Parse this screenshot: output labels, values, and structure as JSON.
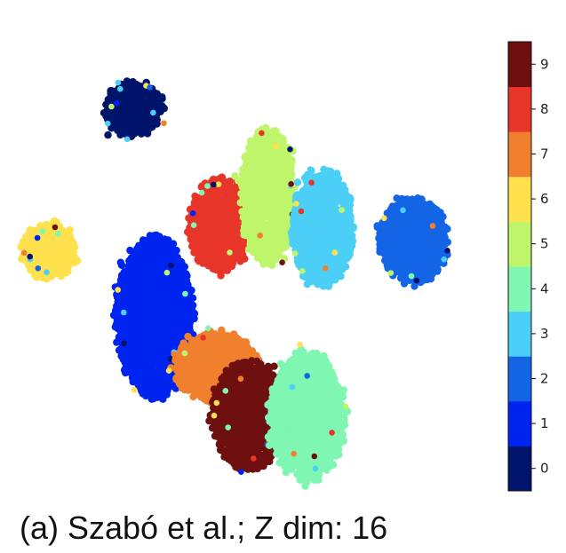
{
  "caption": "(a) Szabó et al.; Z dim: 16",
  "chart_data": {
    "type": "scatter",
    "description_type": "t-SNE embedding colored by class label",
    "colorbar": {
      "ticks": [
        0,
        1,
        2,
        3,
        4,
        5,
        6,
        7,
        8,
        9
      ],
      "colors": [
        "#00146b",
        "#0024f0",
        "#1464e6",
        "#4ccff7",
        "#7ff7b3",
        "#bff56a",
        "#ffe14d",
        "#f0802e",
        "#e8352a",
        "#6e1010"
      ]
    },
    "clusters": [
      {
        "label": 0,
        "x": [
          -1.35,
          -0.95
        ],
        "y": [
          1.05,
          0.78
        ]
      },
      {
        "label": 6,
        "x": [
          -1.9,
          -1.55
        ],
        "y": [
          0.32,
          0.05
        ]
      },
      {
        "label": 1,
        "x": [
          -1.25,
          -0.75
        ],
        "y": [
          0.25,
          -0.58
        ]
      },
      {
        "label": 8,
        "x": [
          -0.75,
          -0.35
        ],
        "y": [
          0.55,
          0.08
        ]
      },
      {
        "label": 5,
        "x": [
          -0.4,
          -0.05
        ],
        "y": [
          0.82,
          0.12
        ]
      },
      {
        "label": 3,
        "x": [
          -0.05,
          0.35
        ],
        "y": [
          0.6,
          0.0
        ]
      },
      {
        "label": 2,
        "x": [
          0.55,
          1.0
        ],
        "y": [
          0.45,
          0.02
        ]
      },
      {
        "label": 7,
        "x": [
          -0.85,
          -0.3
        ],
        "y": [
          -0.25,
          -0.6
        ]
      },
      {
        "label": 9,
        "x": [
          -0.6,
          -0.1
        ],
        "y": [
          -0.4,
          -0.95
        ]
      },
      {
        "label": 4,
        "x": [
          -0.2,
          0.3
        ],
        "y": [
          -0.35,
          -1.0
        ]
      }
    ]
  }
}
